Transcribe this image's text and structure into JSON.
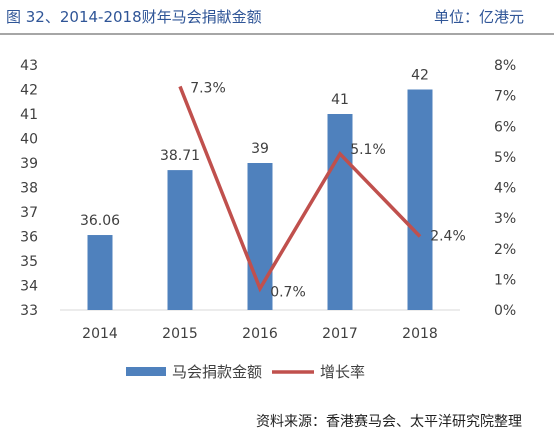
{
  "header": {
    "title": "图 32、2014-2018财年马会捐献金额",
    "unit": "单位：亿港元"
  },
  "footer": {
    "source": "资料来源：香港赛马会、太平洋研究院整理"
  },
  "chart_data": {
    "type": "bar",
    "categories": [
      "2014",
      "2015",
      "2016",
      "2017",
      "2018"
    ],
    "series": [
      {
        "name": "马会捐款金额",
        "type": "bar",
        "axis": "left",
        "values": [
          36.06,
          38.71,
          39,
          41,
          42
        ],
        "labels": [
          "36.06",
          "38.71",
          "39",
          "41",
          "42"
        ],
        "color": "#4f81bd"
      },
      {
        "name": "增长率",
        "type": "line",
        "axis": "right",
        "values": [
          null,
          7.3,
          0.7,
          5.1,
          2.4
        ],
        "labels": [
          "",
          "7.3%",
          "0.7%",
          "5.1%",
          "2.4%"
        ],
        "color": "#c0504d"
      }
    ],
    "y_left": {
      "min": 33,
      "max": 43,
      "ticks": [
        "33",
        "34",
        "35",
        "36",
        "37",
        "38",
        "39",
        "40",
        "41",
        "42",
        "43"
      ]
    },
    "y_right": {
      "min": 0,
      "max": 8,
      "ticks": [
        "0%",
        "1%",
        "2%",
        "3%",
        "4%",
        "5%",
        "6%",
        "7%",
        "8%"
      ]
    },
    "grid": false,
    "legend": "bottom"
  }
}
